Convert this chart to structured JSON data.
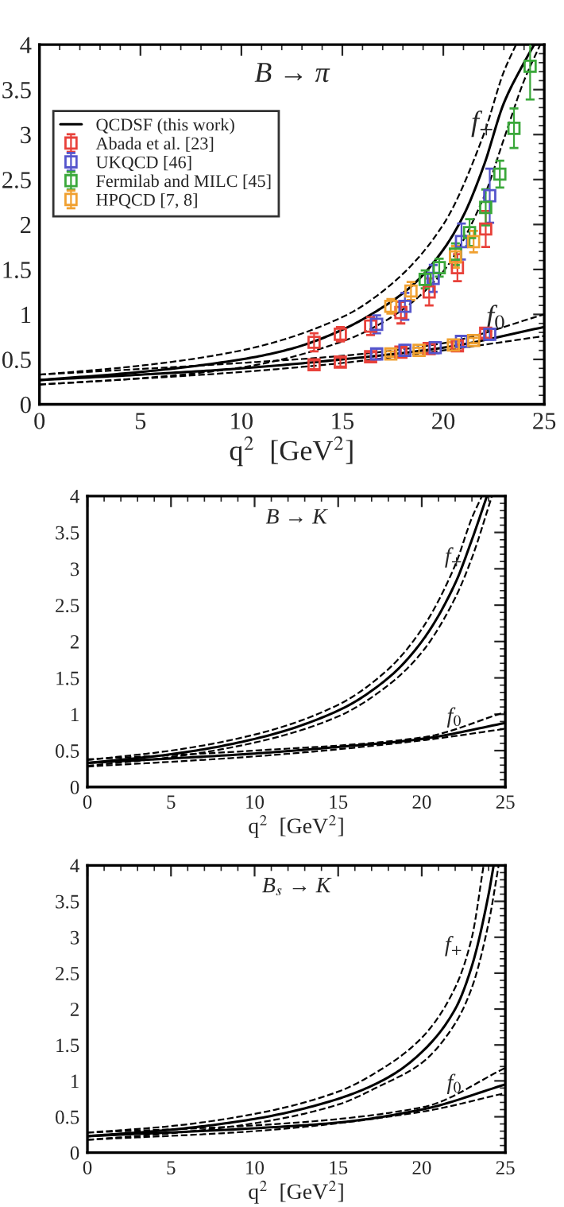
{
  "chart_data": [
    {
      "type": "line",
      "title": "B → π",
      "xlabel": "q$^{2}$  [GeV$^{2}$]",
      "xlim": [
        0,
        25
      ],
      "ylim": [
        0,
        4
      ],
      "xticks": [
        0,
        5,
        10,
        15,
        20,
        25
      ],
      "yticks": [
        0,
        0.5,
        1,
        1.5,
        2,
        2.5,
        3,
        3.5,
        4
      ],
      "legend": "top left",
      "grid": false,
      "annotations": [
        "f$_{+}$",
        "f$_{0}$"
      ],
      "series": [
        {
          "name": "QCDSF (this work)",
          "type": "line",
          "line_style": "solid",
          "color": "#000000",
          "x": [
            0,
            5,
            10,
            12.5,
            15,
            17,
            18.5,
            20,
            21,
            22,
            23,
            24,
            24.5
          ],
          "values": [
            0.27,
            0.36,
            0.5,
            0.62,
            0.83,
            1.08,
            1.33,
            1.72,
            2.1,
            2.65,
            3.35,
            3.8,
            4.0
          ]
        },
        {
          "type": "line",
          "line_style": "dashed",
          "color": "#000000",
          "x": [
            0,
            5,
            10,
            15,
            17.5,
            20,
            22,
            23,
            23.6
          ],
          "values": [
            0.33,
            0.43,
            0.6,
            0.97,
            1.35,
            2.0,
            3.0,
            3.7,
            4.0
          ]
        },
        {
          "type": "line",
          "line_style": "dashed",
          "color": "#000000",
          "x": [
            0,
            5,
            10,
            15,
            17.5,
            20,
            22,
            23,
            24,
            24.8
          ],
          "values": [
            0.22,
            0.29,
            0.41,
            0.7,
            0.98,
            1.48,
            2.3,
            2.95,
            3.6,
            4.0
          ]
        },
        {
          "type": "line",
          "line_style": "solid",
          "color": "#000000",
          "x": [
            0,
            5,
            10,
            15,
            20,
            25
          ],
          "values": [
            0.27,
            0.33,
            0.4,
            0.5,
            0.63,
            0.86
          ]
        },
        {
          "type": "line",
          "line_style": "dashed",
          "color": "#000000",
          "x": [
            0,
            10,
            15,
            20,
            25
          ],
          "values": [
            0.33,
            0.46,
            0.54,
            0.68,
            1.0
          ]
        },
        {
          "type": "line",
          "line_style": "dashed",
          "color": "#000000",
          "x": [
            0,
            10,
            15,
            20,
            25
          ],
          "values": [
            0.22,
            0.36,
            0.46,
            0.6,
            0.76
          ]
        },
        {
          "name": "Abada et al. [23]",
          "type": "scatter",
          "marker": "square",
          "color": "#e8413a",
          "x": [
            13.6,
            13.6,
            14.9,
            14.9,
            16.4,
            16.4,
            17.9,
            17.9,
            19.3,
            19.3,
            20.7,
            20.7,
            22.1,
            22.1
          ],
          "values": [
            0.69,
            0.44,
            0.78,
            0.47,
            0.87,
            0.53,
            1.02,
            0.58,
            1.25,
            0.62,
            1.52,
            0.65,
            1.95,
            0.79
          ],
          "errors": [
            0.1,
            0.05,
            0.08,
            0.05,
            0.1,
            0.05,
            0.12,
            0.05,
            0.15,
            0.05,
            0.15,
            0.05,
            0.2,
            0.05
          ]
        },
        {
          "name": "UKQCD [46]",
          "type": "scatter",
          "marker": "square",
          "color": "#5555cc",
          "x": [
            16.7,
            16.7,
            18.1,
            18.1,
            19.5,
            19.6,
            20.9,
            20.9,
            22.3,
            22.3
          ],
          "values": [
            0.89,
            0.56,
            1.09,
            0.6,
            1.4,
            0.63,
            1.81,
            0.7,
            2.32,
            0.78
          ],
          "errors": [
            0.1,
            0.06,
            0.15,
            0.06,
            0.15,
            0.06,
            0.2,
            0.06,
            0.3,
            0.06
          ]
        },
        {
          "name": "Fermilab and MILC [45]",
          "type": "scatter",
          "marker": "square",
          "color": "#3aa83a",
          "x": [
            19.1,
            19.8,
            20.6,
            21.3,
            22.1,
            22.8,
            23.5,
            24.3
          ],
          "values": [
            1.39,
            1.52,
            1.67,
            1.91,
            2.19,
            2.56,
            3.07,
            3.76
          ],
          "errors": [
            0.1,
            0.1,
            0.12,
            0.15,
            0.2,
            0.15,
            0.22,
            0.37
          ]
        },
        {
          "name": "HPQCD [7, 8]",
          "type": "scatter",
          "marker": "square",
          "color": "#f0a030",
          "x": [
            17.4,
            18.4,
            20.6,
            21.5,
            17.4,
            18.8,
            20.5,
            21.5
          ],
          "values": [
            1.09,
            1.26,
            1.64,
            1.81,
            0.56,
            0.6,
            0.66,
            0.71
          ],
          "errors": [
            0.08,
            0.1,
            0.12,
            0.12,
            0.03,
            0.03,
            0.03,
            0.03
          ]
        }
      ]
    },
    {
      "type": "line",
      "title": "B → K",
      "xlabel": "q$^{2}$  [GeV$^{2}$]",
      "xlim": [
        0,
        25
      ],
      "ylim": [
        0,
        4
      ],
      "xticks": [
        0,
        5,
        10,
        15,
        20,
        25
      ],
      "yticks": [
        0,
        0.5,
        1,
        1.5,
        2,
        2.5,
        3,
        3.5,
        4
      ],
      "grid": false,
      "annotations": [
        "f$_{+}$",
        "f$_{0}$"
      ],
      "series": [
        {
          "type": "line",
          "line_style": "solid",
          "color": "#000000",
          "x": [
            0,
            5,
            10,
            15,
            18,
            20,
            22,
            23,
            23.9
          ],
          "values": [
            0.33,
            0.45,
            0.66,
            1.05,
            1.5,
            2.0,
            2.8,
            3.4,
            4.0
          ]
        },
        {
          "type": "line",
          "line_style": "dashed",
          "color": "#000000",
          "x": [
            0,
            5,
            10,
            15,
            18,
            20,
            22,
            23,
            23.6
          ],
          "values": [
            0.37,
            0.5,
            0.72,
            1.13,
            1.62,
            2.17,
            3.05,
            3.7,
            4.0
          ]
        },
        {
          "type": "line",
          "line_style": "dashed",
          "color": "#000000",
          "x": [
            0,
            5,
            10,
            15,
            18,
            20,
            22,
            23,
            24.2
          ],
          "values": [
            0.29,
            0.41,
            0.61,
            0.97,
            1.4,
            1.85,
            2.6,
            3.15,
            4.0
          ]
        },
        {
          "type": "line",
          "line_style": "solid",
          "color": "#000000",
          "x": [
            0,
            10,
            15,
            20,
            25
          ],
          "values": [
            0.33,
            0.46,
            0.55,
            0.66,
            0.88
          ]
        },
        {
          "type": "line",
          "line_style": "dashed",
          "color": "#000000",
          "x": [
            0,
            10,
            20,
            25
          ],
          "values": [
            0.38,
            0.5,
            0.68,
            1.03
          ]
        },
        {
          "type": "line",
          "line_style": "dashed",
          "color": "#000000",
          "x": [
            0,
            10,
            20,
            25
          ],
          "values": [
            0.28,
            0.42,
            0.64,
            0.8
          ]
        }
      ]
    },
    {
      "type": "line",
      "title": "B$_{s}$ → K",
      "xlabel": "q$^{2}$  [GeV$^{2}$]",
      "xlim": [
        0,
        25
      ],
      "ylim": [
        0,
        4
      ],
      "xticks": [
        0,
        5,
        10,
        15,
        20,
        25
      ],
      "yticks": [
        0,
        0.5,
        1,
        1.5,
        2,
        2.5,
        3,
        3.5,
        4
      ],
      "grid": false,
      "annotations": [
        "f$_{+}$",
        "f$_{0}$"
      ],
      "series": [
        {
          "type": "line",
          "line_style": "solid",
          "color": "#000000",
          "x": [
            0,
            5,
            10,
            15,
            18,
            20,
            22,
            23,
            24,
            24.3
          ],
          "values": [
            0.23,
            0.32,
            0.47,
            0.75,
            1.05,
            1.4,
            2.0,
            2.6,
            3.6,
            4.0
          ]
        },
        {
          "type": "line",
          "line_style": "dashed",
          "color": "#000000",
          "x": [
            0,
            5,
            10,
            15,
            17.5,
            20,
            22,
            23,
            23.7
          ],
          "values": [
            0.28,
            0.37,
            0.54,
            0.85,
            1.15,
            1.6,
            2.3,
            3.0,
            4.0
          ]
        },
        {
          "type": "line",
          "line_style": "dashed",
          "color": "#000000",
          "x": [
            0,
            5,
            10,
            15,
            17.5,
            20,
            22,
            23,
            24,
            24.6
          ],
          "values": [
            0.18,
            0.27,
            0.41,
            0.67,
            0.93,
            1.25,
            1.8,
            2.3,
            3.2,
            4.0
          ]
        },
        {
          "type": "line",
          "line_style": "solid",
          "color": "#000000",
          "x": [
            0,
            10,
            15,
            20,
            25
          ],
          "values": [
            0.23,
            0.34,
            0.42,
            0.6,
            0.95
          ]
        },
        {
          "type": "line",
          "line_style": "dashed",
          "color": "#000000",
          "x": [
            0,
            10,
            20,
            25
          ],
          "values": [
            0.28,
            0.38,
            0.63,
            1.18
          ]
        },
        {
          "type": "line",
          "line_style": "dashed",
          "color": "#000000",
          "x": [
            0,
            10,
            20,
            25
          ],
          "values": [
            0.18,
            0.3,
            0.57,
            0.83
          ]
        }
      ]
    }
  ]
}
